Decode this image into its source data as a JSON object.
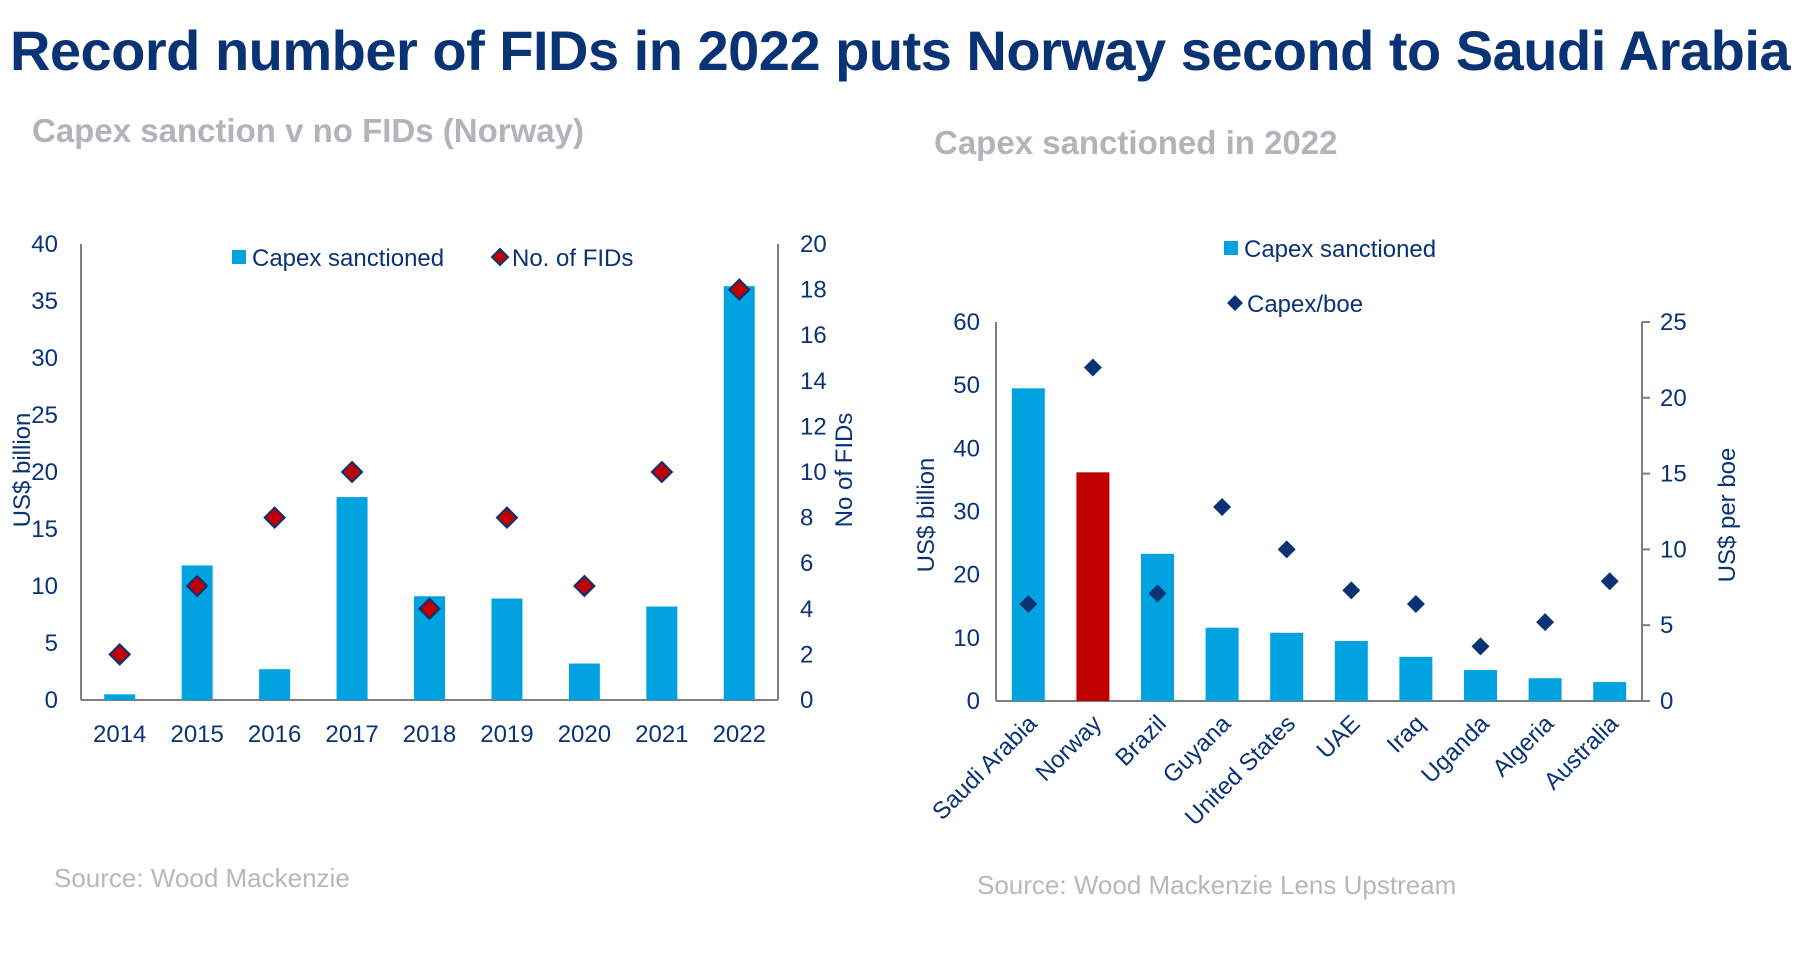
{
  "title": "Record number of FIDs in 2022 puts Norway second to Saudi Arabia",
  "colors": {
    "title": "#0a3375",
    "bar": "#00a3e0",
    "highlight": "#c00000",
    "diamond_fill_left": "#c00000",
    "diamond_stroke": "#0a3375",
    "diamond_right": "#0a3375",
    "axis": "#7f7f7f",
    "subtitle": "#b3b3b9"
  },
  "chart_data": [
    {
      "type": "bar",
      "subtitle": "Capex sanction v no FIDs (Norway)",
      "source": "Source: Wood Mackenzie",
      "categories": [
        "2014",
        "2015",
        "2016",
        "2017",
        "2018",
        "2019",
        "2020",
        "2021",
        "2022"
      ],
      "series": [
        {
          "name": "Capex sanctioned",
          "kind": "bar",
          "axis": "left",
          "values": [
            0.5,
            11.8,
            2.7,
            17.8,
            9.1,
            8.9,
            3.2,
            8.2,
            36.3
          ]
        },
        {
          "name": "No. of FIDs",
          "kind": "scatter",
          "marker": "diamond",
          "axis": "right",
          "values": [
            2,
            5,
            8,
            10,
            4,
            8,
            5,
            10,
            18
          ]
        }
      ],
      "ylabel": "US$ billion",
      "ylim": [
        0,
        40
      ],
      "yticks": [
        "0",
        "5",
        "10",
        "15",
        "20",
        "25",
        "30",
        "35",
        "40"
      ],
      "y2label": "No of FIDs",
      "y2lim": [
        0,
        20
      ],
      "y2ticks": [
        "0",
        "2",
        "4",
        "6",
        "8",
        "10",
        "12",
        "14",
        "16",
        "18",
        "20"
      ],
      "legend": "top-center",
      "grid": false
    },
    {
      "type": "bar",
      "subtitle": "Capex sanctioned in 2022",
      "source": "Source: Wood Mackenzie Lens Upstream",
      "categories": [
        "Saudi Arabia",
        "Norway",
        "Brazil",
        "Guyana",
        "United States",
        "UAE",
        "Iraq",
        "Uganda",
        "Algeria",
        "Australia"
      ],
      "highlight_category": "Norway",
      "series": [
        {
          "name": "Capex sanctioned",
          "kind": "bar",
          "axis": "left",
          "values": [
            49.5,
            36.2,
            23.3,
            11.6,
            10.8,
            9.5,
            7.0,
            4.9,
            3.6,
            3.0
          ]
        },
        {
          "name": "Capex/boe",
          "kind": "scatter",
          "marker": "diamond",
          "axis": "right",
          "values": [
            6.4,
            22.0,
            7.1,
            12.8,
            10.0,
            7.3,
            6.4,
            3.6,
            5.2,
            7.9
          ]
        }
      ],
      "ylabel": "US$ billion",
      "ylim": [
        0,
        60
      ],
      "yticks": [
        "0",
        "10",
        "20",
        "30",
        "40",
        "50",
        "60"
      ],
      "y2label": "US$ per boe",
      "y2lim": [
        0,
        25
      ],
      "y2ticks": [
        "0",
        "5",
        "10",
        "15",
        "20",
        "25"
      ],
      "legend": "top-center",
      "grid": false
    }
  ]
}
